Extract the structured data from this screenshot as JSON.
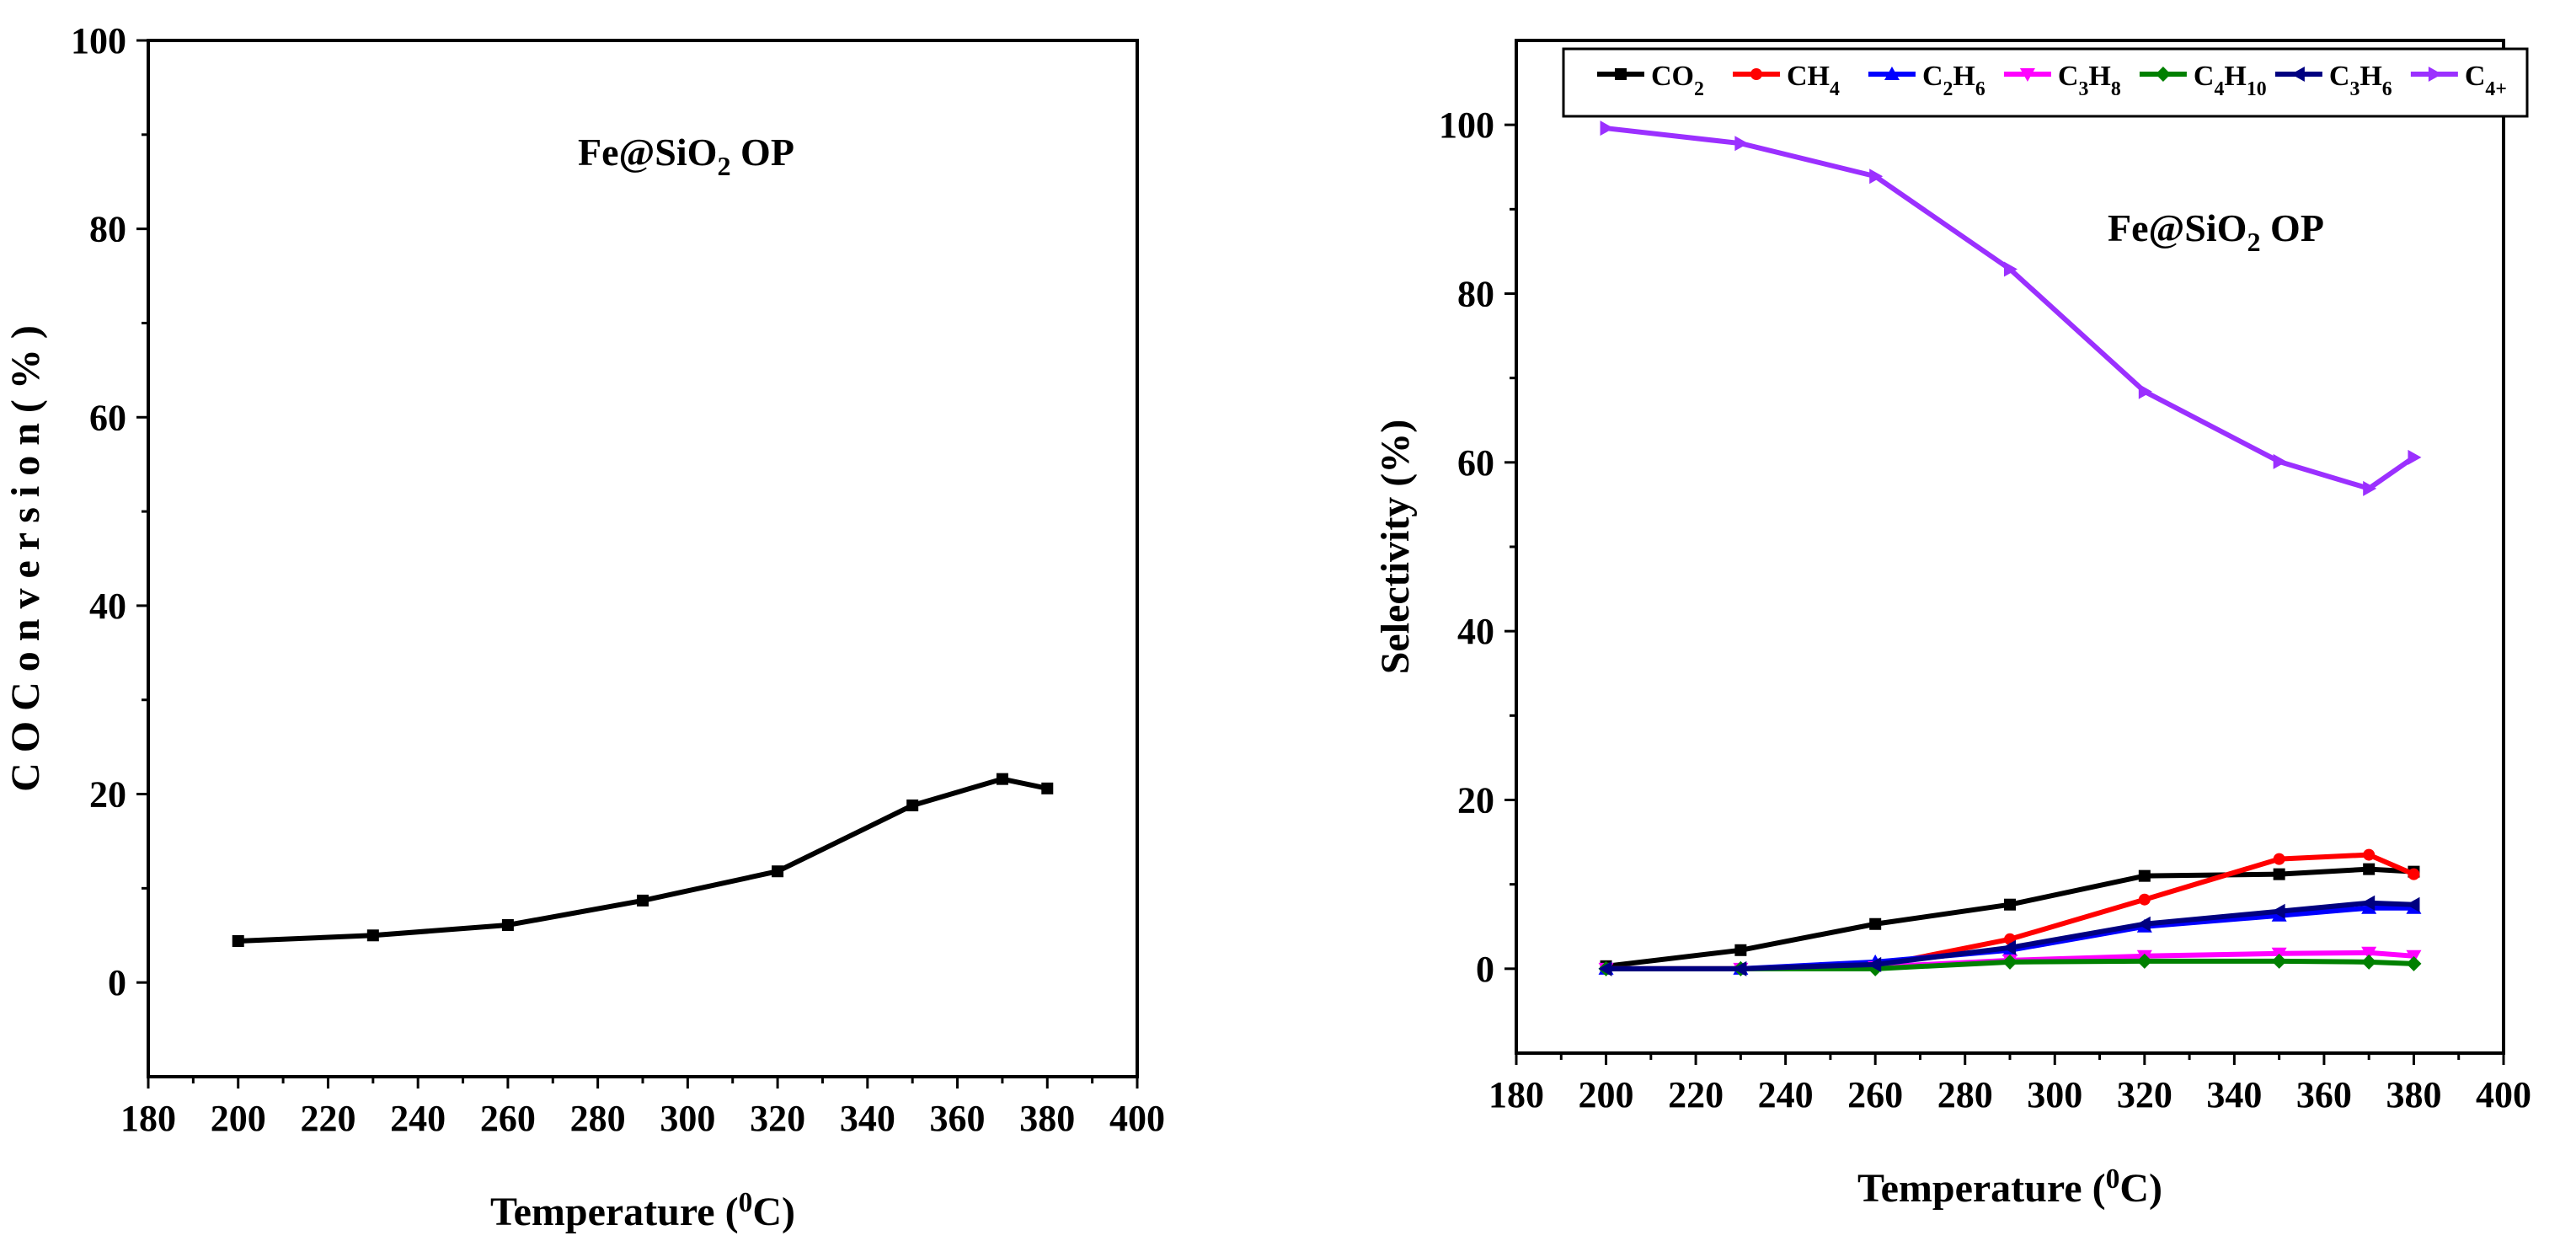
{
  "chart_data": [
    {
      "type": "line",
      "title": "",
      "annotation": {
        "main": "Fe@SiO",
        "sub": "2",
        "tail": " OP"
      },
      "xlabel": {
        "main": "Temperature (",
        "sup": "0",
        "tail": "C)"
      },
      "ylabel": "C O  C o n v e r s i o n  ( % )",
      "xlim": [
        180,
        400
      ],
      "ylim": [
        -10,
        100
      ],
      "xticks": [
        180,
        200,
        220,
        240,
        260,
        280,
        300,
        320,
        340,
        360,
        380,
        400
      ],
      "yticks": [
        0,
        20,
        40,
        60,
        80,
        100
      ],
      "series": [
        {
          "name": "CO Conversion",
          "color": "#000000",
          "marker": "square",
          "x": [
            200,
            230,
            260,
            290,
            320,
            350,
            370,
            380
          ],
          "y": [
            4.4,
            5.0,
            6.1,
            8.7,
            11.8,
            18.8,
            21.6,
            20.6
          ]
        }
      ]
    },
    {
      "type": "line",
      "title": "",
      "annotation": {
        "main": "Fe@SiO",
        "sub": "2",
        "tail": " OP"
      },
      "xlabel": {
        "main": "Temperature (",
        "sup": "0",
        "tail": "C)"
      },
      "ylabel": "Selectivity (%)",
      "xlim": [
        180,
        400
      ],
      "ylim": [
        -10,
        110
      ],
      "xticks": [
        180,
        200,
        220,
        240,
        260,
        280,
        300,
        320,
        340,
        360,
        380,
        400
      ],
      "yticks": [
        0,
        20,
        40,
        60,
        80,
        100
      ],
      "legend": "top",
      "series": [
        {
          "name": "CO2",
          "label": {
            "main": "CO",
            "sub": "2"
          },
          "color": "#000000",
          "marker": "square",
          "x": [
            200,
            230,
            260,
            290,
            320,
            350,
            370,
            380
          ],
          "y": [
            0.3,
            2.2,
            5.3,
            7.6,
            11.0,
            11.2,
            11.8,
            11.5
          ]
        },
        {
          "name": "CH4",
          "label": {
            "main": "CH",
            "sub": "4"
          },
          "color": "#ff0000",
          "marker": "circle",
          "x": [
            200,
            230,
            260,
            290,
            320,
            350,
            370,
            380
          ],
          "y": [
            0.0,
            0.0,
            0.3,
            3.5,
            8.2,
            13.0,
            13.5,
            11.2
          ]
        },
        {
          "name": "C2H6",
          "label": {
            "main": "C",
            "sub": "2",
            "main2": "H",
            "sub2": "6"
          },
          "color": "#0000ff",
          "marker": "triangle-up",
          "x": [
            200,
            230,
            260,
            290,
            320,
            350,
            370,
            380
          ],
          "y": [
            0.0,
            0.0,
            0.8,
            2.2,
            5.0,
            6.3,
            7.2,
            7.2
          ]
        },
        {
          "name": "C3H8",
          "label": {
            "main": "C",
            "sub": "3",
            "main2": "H",
            "sub2": "8"
          },
          "color": "#ff00ff",
          "marker": "triangle-down",
          "x": [
            200,
            230,
            260,
            290,
            320,
            350,
            370,
            380
          ],
          "y": [
            0.0,
            0.0,
            0.2,
            1.0,
            1.5,
            1.8,
            1.9,
            1.5
          ]
        },
        {
          "name": "C4H10",
          "label": {
            "main": "C",
            "sub": "4",
            "main2": "H",
            "sub2": "10"
          },
          "color": "#008000",
          "marker": "diamond",
          "x": [
            200,
            230,
            260,
            290,
            320,
            350,
            370,
            380
          ],
          "y": [
            0.0,
            0.0,
            0.0,
            0.8,
            0.9,
            0.9,
            0.8,
            0.6
          ]
        },
        {
          "name": "C3H6",
          "label": {
            "main": "C",
            "sub": "3",
            "main2": "H",
            "sub2": "6"
          },
          "color": "#000080",
          "marker": "triangle-left",
          "x": [
            200,
            230,
            260,
            290,
            320,
            350,
            370,
            380
          ],
          "y": [
            0.0,
            0.0,
            0.5,
            2.5,
            5.3,
            6.8,
            7.8,
            7.6
          ]
        },
        {
          "name": "C4+",
          "label": {
            "main": "C",
            "sub": "4+"
          },
          "color": "#9b30ff",
          "marker": "triangle-right",
          "x": [
            200,
            230,
            260,
            290,
            320,
            350,
            370,
            380
          ],
          "y": [
            99.6,
            97.8,
            93.9,
            82.9,
            68.4,
            60.1,
            56.9,
            60.6
          ]
        }
      ]
    }
  ]
}
